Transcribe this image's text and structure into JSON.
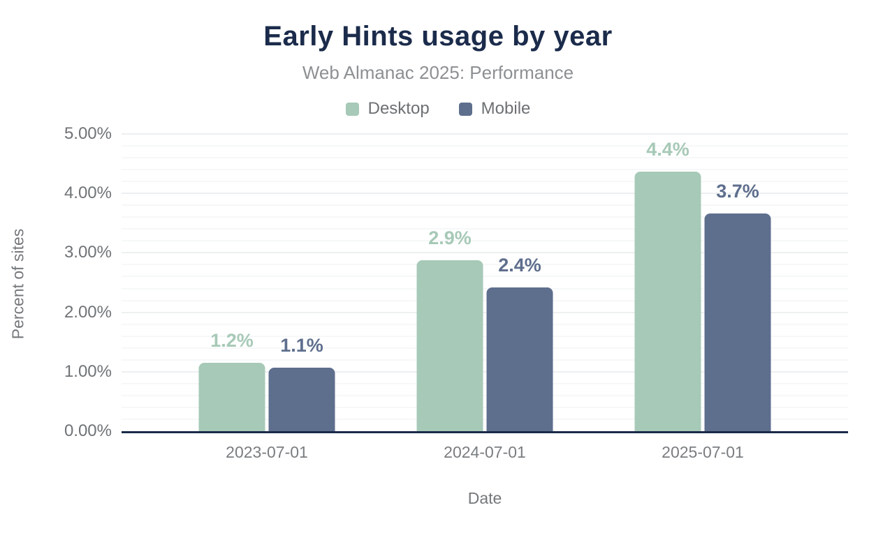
{
  "header": {
    "title": "Early Hints usage by year",
    "subtitle": "Web Almanac 2025: Performance"
  },
  "colors": {
    "title_text": "#1b2b4b",
    "axis_line": "#1b2a49",
    "desktop": "#a7c9b7",
    "mobile": "#5e6e8d",
    "grid_minor": "#f6f7f8",
    "grid_major": "#edeff1"
  },
  "chart_data": {
    "type": "bar",
    "title": "Early Hints usage by year",
    "subtitle": "Web Almanac 2025: Performance",
    "categories": [
      "2023-07-01",
      "2024-07-01",
      "2025-07-01"
    ],
    "series": [
      {
        "name": "Desktop",
        "color": "#a7c9b7",
        "values": [
          1.15,
          2.88,
          4.37
        ],
        "data_labels": [
          "1.2%",
          "2.9%",
          "4.4%"
        ]
      },
      {
        "name": "Mobile",
        "color": "#5e6e8d",
        "values": [
          1.07,
          2.42,
          3.66
        ],
        "data_labels": [
          "1.1%",
          "2.4%",
          "3.7%"
        ]
      }
    ],
    "xlabel": "Date",
    "ylabel": "Percent of sites",
    "ylim": [
      0,
      5
    ],
    "y_ticks": [
      "0.00%",
      "1.00%",
      "2.00%",
      "3.00%",
      "4.00%",
      "5.00%"
    ],
    "y_major_step": 1.0,
    "y_minor_step": 0.2,
    "grid": true,
    "legend_position": "top"
  }
}
